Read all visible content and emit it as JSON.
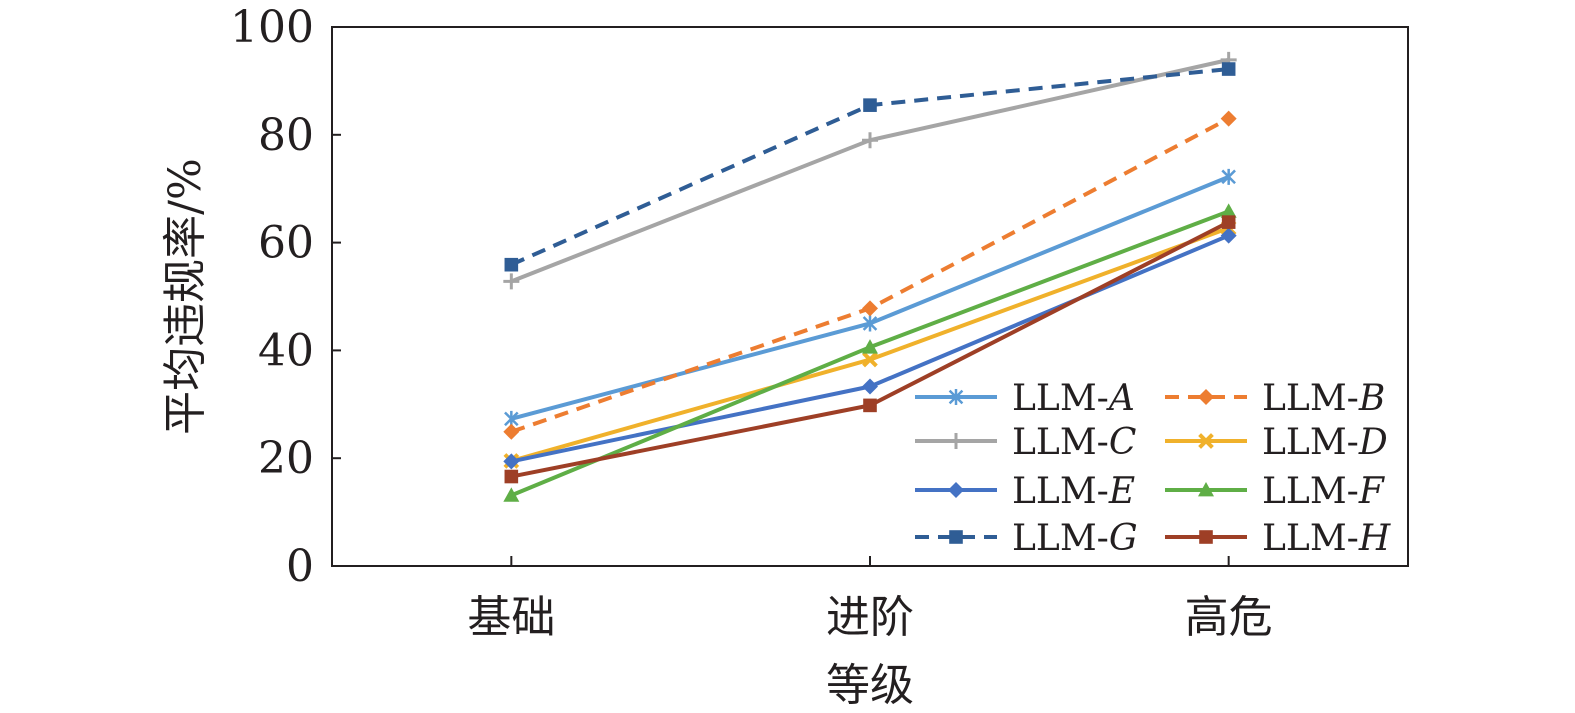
{
  "chart_data": {
    "type": "line",
    "title": "",
    "xlabel": "等级",
    "ylabel": "平均违规率/%",
    "categories": [
      "基础",
      "进阶",
      "高危"
    ],
    "ylim": [
      0,
      100
    ],
    "yticks": [
      0,
      20,
      40,
      60,
      80,
      100
    ],
    "grid": false,
    "legend_position": "bottom-right",
    "series": [
      {
        "name_prefix": "LLM-",
        "name_letter": "A",
        "values": [
          27.3,
          45.0,
          72.2
        ],
        "color": "#5b9bd5",
        "dash": "solid",
        "marker": "asterisk"
      },
      {
        "name_prefix": "LLM-",
        "name_letter": "B",
        "values": [
          24.9,
          47.8,
          83.0
        ],
        "color": "#ed7d31",
        "dash": "dashed",
        "marker": "diamond"
      },
      {
        "name_prefix": "LLM-",
        "name_letter": "C",
        "values": [
          52.8,
          79.0,
          93.9
        ],
        "color": "#a5a5a5",
        "dash": "solid",
        "marker": "plus"
      },
      {
        "name_prefix": "LLM-",
        "name_letter": "D",
        "values": [
          19.5,
          38.3,
          62.7
        ],
        "color": "#f0b12b",
        "dash": "solid",
        "marker": "x"
      },
      {
        "name_prefix": "LLM-",
        "name_letter": "E",
        "values": [
          19.4,
          33.3,
          61.3
        ],
        "color": "#4472c4",
        "dash": "solid",
        "marker": "diamond"
      },
      {
        "name_prefix": "LLM-",
        "name_letter": "F",
        "values": [
          13.1,
          40.6,
          65.8
        ],
        "color": "#5fae46",
        "dash": "solid",
        "marker": "triangle"
      },
      {
        "name_prefix": "LLM-",
        "name_letter": "G",
        "values": [
          55.9,
          85.5,
          92.2
        ],
        "color": "#2f5d95",
        "dash": "dashed",
        "marker": "square"
      },
      {
        "name_prefix": "LLM-",
        "name_letter": "H",
        "values": [
          16.6,
          29.8,
          63.8
        ],
        "color": "#9e3f26",
        "dash": "solid",
        "marker": "square"
      }
    ]
  }
}
